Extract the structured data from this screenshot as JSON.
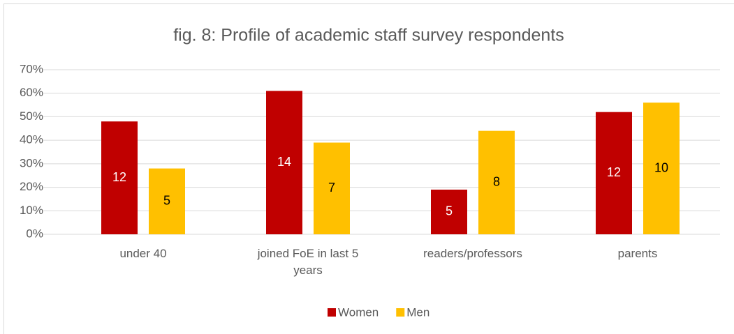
{
  "chart_data": {
    "type": "bar",
    "title": "fig. 8: Profile of academic staff survey respondents",
    "categories": [
      "under 40",
      "joined FoE in last 5 years",
      "readers/professors",
      "parents"
    ],
    "series": [
      {
        "name": "Women",
        "color": "#c00000",
        "values": [
          48,
          61,
          19,
          52
        ],
        "counts": [
          12,
          14,
          5,
          12
        ]
      },
      {
        "name": "Men",
        "color": "#ffc000",
        "values": [
          28,
          39,
          44,
          56
        ],
        "counts": [
          5,
          7,
          8,
          10
        ]
      }
    ],
    "ylim": [
      0,
      70
    ],
    "yticks": [
      {
        "value": 0,
        "label": "0%"
      },
      {
        "value": 10,
        "label": "10%"
      },
      {
        "value": 20,
        "label": "20%"
      },
      {
        "value": 30,
        "label": "30%"
      },
      {
        "value": 40,
        "label": "40%"
      },
      {
        "value": 50,
        "label": "50%"
      },
      {
        "value": 60,
        "label": "60%"
      },
      {
        "value": 70,
        "label": "70%"
      }
    ],
    "grid": true,
    "legend": "bottom"
  }
}
